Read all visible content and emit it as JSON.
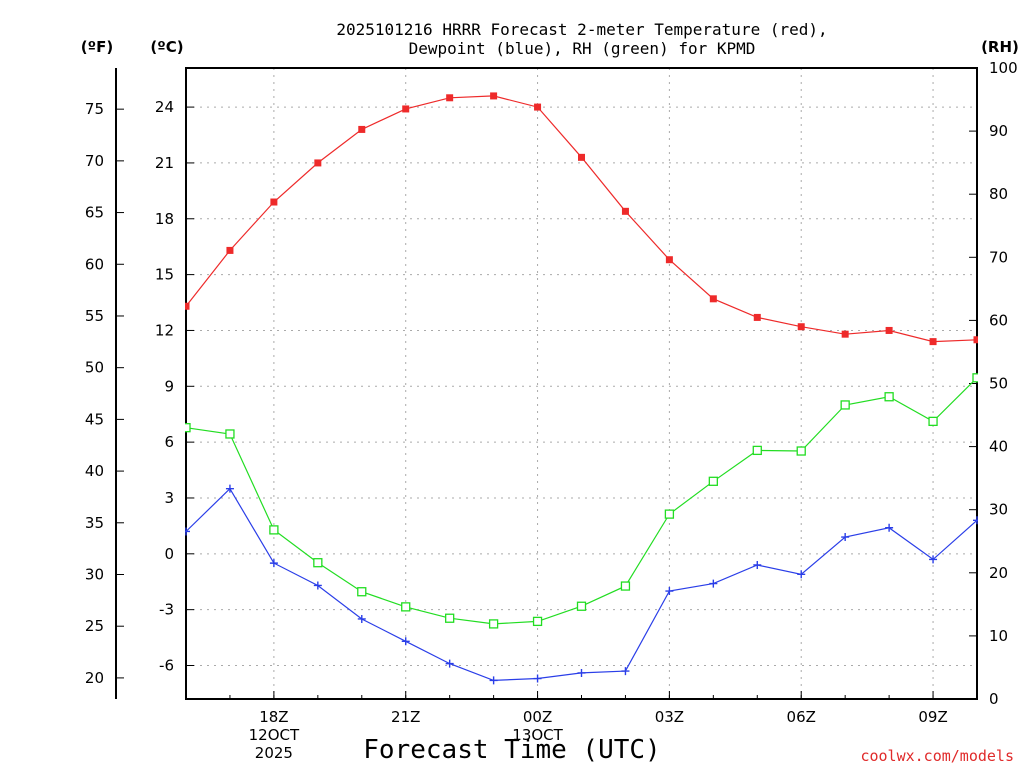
{
  "chart_data": {
    "type": "line",
    "title_lines": [
      "2025101216 HRRR Forecast 2-meter Temperature (red),",
      "Dewpoint (blue), RH (green) for KPMD"
    ],
    "xlabel": "Forecast Time (UTC)",
    "credit": "coolwx.com/models",
    "units": {
      "fahrenheit": "(ºF)",
      "celsius": "(ºC)",
      "rh": "(RH)"
    },
    "x_range": [
      16,
      34
    ],
    "x_ticks": [
      {
        "x": 18,
        "lines": [
          "18Z",
          "12OCT",
          "2025"
        ]
      },
      {
        "x": 21,
        "lines": [
          "21Z"
        ]
      },
      {
        "x": 24,
        "lines": [
          "00Z",
          "13OCT"
        ]
      },
      {
        "x": 27,
        "lines": [
          "03Z"
        ]
      },
      {
        "x": 30,
        "lines": [
          "06Z"
        ]
      },
      {
        "x": 33,
        "lines": [
          "09Z"
        ]
      }
    ],
    "celsius_axis": {
      "range": [
        -7.8,
        26.1
      ],
      "ticks": [
        "-6",
        "-3",
        "0",
        "3",
        "6",
        "9",
        "12",
        "15",
        "18",
        "21",
        "24"
      ]
    },
    "fahrenheit_axis": {
      "ticks": [
        "20",
        "25",
        "30",
        "35",
        "40",
        "45",
        "50",
        "55",
        "60",
        "65",
        "70",
        "75"
      ]
    },
    "rh_axis": {
      "range": [
        0,
        100
      ],
      "ticks": [
        "0",
        "10",
        "20",
        "30",
        "40",
        "50",
        "60",
        "70",
        "80",
        "90",
        "100"
      ]
    },
    "series": [
      {
        "name": "2-meter Temperature",
        "axis": "celsius",
        "color": "#ee2a2a",
        "marker": "filled-square",
        "x": [
          16,
          17,
          18,
          19,
          20,
          21,
          22,
          23,
          24,
          25,
          26,
          27,
          28,
          29,
          30,
          31,
          32,
          33,
          34
        ],
        "values": [
          13.3,
          16.3,
          18.9,
          21.0,
          22.8,
          23.9,
          24.5,
          24.6,
          24.0,
          21.3,
          18.4,
          15.8,
          13.7,
          12.7,
          12.2,
          11.8,
          12.0,
          11.4,
          11.5
        ]
      },
      {
        "name": "Dewpoint",
        "axis": "celsius",
        "color": "#2a3ee8",
        "marker": "plus",
        "x": [
          16,
          17,
          18,
          19,
          20,
          21,
          22,
          23,
          24,
          25,
          26,
          27,
          28,
          29,
          30,
          31,
          32,
          33,
          34
        ],
        "values": [
          1.2,
          3.5,
          -0.5,
          -1.7,
          -3.5,
          -4.7,
          -5.9,
          -6.8,
          -6.7,
          -6.4,
          -6.3,
          -2.0,
          -1.6,
          -0.6,
          -1.1,
          0.9,
          1.4,
          -0.3,
          1.8
        ]
      },
      {
        "name": "RH",
        "axis": "rh",
        "color": "#22dd22",
        "marker": "open-square",
        "x": [
          16,
          17,
          18,
          19,
          20,
          21,
          22,
          23,
          24,
          25,
          26,
          27,
          28,
          29,
          30,
          31,
          32,
          33,
          34
        ],
        "values": [
          43.0,
          42.0,
          26.8,
          21.6,
          17.0,
          14.6,
          12.8,
          11.9,
          12.3,
          14.7,
          17.9,
          29.3,
          34.5,
          39.4,
          39.3,
          46.6,
          47.9,
          44.0,
          50.9
        ]
      }
    ]
  }
}
